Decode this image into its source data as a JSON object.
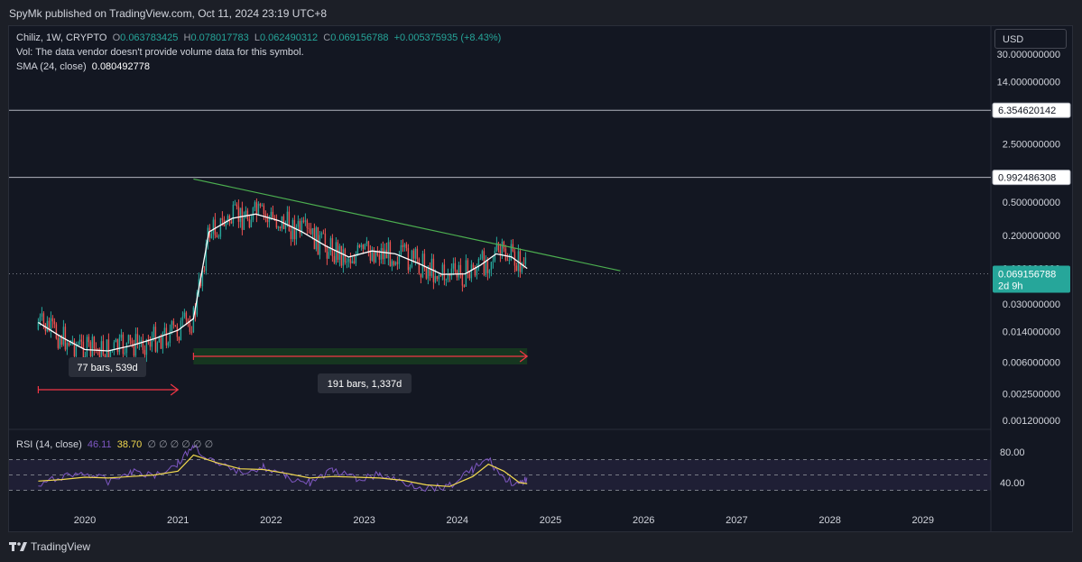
{
  "header": {
    "published": "SpyMk published on TradingView.com, Oct 11, 2024 23:19 UTC+8"
  },
  "legend": {
    "symbol": "Chiliz, 1W, CRYPTO",
    "o_label": "O",
    "o": "0.063783425",
    "h_label": "H",
    "h": "0.078017783",
    "l_label": "L",
    "l": "0.062490312",
    "c_label": "C",
    "c": "0.069156788",
    "change": "+0.005375935 (+8.43%)",
    "vol": "Vol: The data vendor doesn't provide volume data for this symbol.",
    "sma_label": "SMA (24, close)",
    "sma_value": "0.080492778",
    "rsi_label": "RSI (14, close)",
    "rsi_value": "46.11",
    "rsi_ma": "38.70",
    "rsi_extra": "∅ ∅ ∅ ∅ ∅ ∅"
  },
  "currency": "USD",
  "footer": {
    "brand": "TradingView"
  },
  "colors": {
    "up": "#26a69a",
    "down": "#ef5350",
    "trendline": "#4caf50",
    "sma": "#ffffff",
    "rsi": "#7e57c2",
    "rsi_ma": "#f2d94e",
    "price_badge": "#26a69a"
  },
  "chart_data": [
    {
      "type": "line",
      "title": "Chiliz, 1W, CRYPTO",
      "y_scale": "log",
      "y_axis_labels": [
        "30.000000000",
        "14.000000000",
        "2.500000000",
        "0.500000000",
        "0.200000000",
        "0.080000000",
        "0.030000000",
        "0.014000000",
        "0.006000000",
        "0.002500000",
        "0.001200000"
      ],
      "x_axis_labels": [
        "2020",
        "2021",
        "2022",
        "2023",
        "2024",
        "2025",
        "2026",
        "2027",
        "2028",
        "2029"
      ],
      "price_lines": [
        {
          "label": "6.354620142",
          "value": 6.354620142
        },
        {
          "label": "0.992486308",
          "value": 0.992486308
        }
      ],
      "last_price": {
        "label": "0.069156788",
        "countdown": "2d 9h"
      },
      "series": [
        {
          "name": "SMA (24, close)",
          "x": [
            "2019-07",
            "2019-10",
            "2020-01",
            "2020-04",
            "2020-07",
            "2020-10",
            "2021-01",
            "2021-03",
            "2021-05",
            "2021-08",
            "2021-11",
            "2022-02",
            "2022-05",
            "2022-08",
            "2022-11",
            "2023-02",
            "2023-05",
            "2023-08",
            "2023-11",
            "2024-02",
            "2024-04",
            "2024-06",
            "2024-08",
            "2024-10"
          ],
          "y": [
            0.018,
            0.012,
            0.0085,
            0.0082,
            0.0095,
            0.0115,
            0.0145,
            0.02,
            0.22,
            0.32,
            0.36,
            0.3,
            0.22,
            0.15,
            0.11,
            0.13,
            0.12,
            0.092,
            0.068,
            0.069,
            0.088,
            0.12,
            0.11,
            0.08
          ]
        }
      ],
      "trendline": {
        "from": {
          "x": "2021-03",
          "y": 0.95
        },
        "to": {
          "x": "2025-10",
          "y": 0.075
        }
      },
      "annotations": [
        {
          "text": "77 bars, 539d",
          "from": "2019-07",
          "to": "2021-01"
        },
        {
          "text": "191 bars, 1,337d",
          "from": "2021-03",
          "to": "2024-10"
        }
      ]
    },
    {
      "type": "line",
      "title": "RSI (14, close)",
      "y_axis_labels": [
        "80.00",
        "40.00"
      ],
      "ylim": [
        25,
        90
      ],
      "bands": [
        70,
        50,
        30
      ],
      "series": [
        {
          "name": "RSI",
          "x": [
            "2019-07",
            "2019-10",
            "2020-01",
            "2020-04",
            "2020-07",
            "2020-10",
            "2021-01",
            "2021-03",
            "2021-06",
            "2021-09",
            "2021-12",
            "2022-03",
            "2022-06",
            "2022-09",
            "2022-12",
            "2023-03",
            "2023-06",
            "2023-09",
            "2023-12",
            "2024-03",
            "2024-05",
            "2024-07",
            "2024-09",
            "2024-10"
          ],
          "y": [
            35,
            48,
            52,
            42,
            55,
            50,
            65,
            88,
            62,
            55,
            60,
            47,
            40,
            56,
            44,
            50,
            40,
            33,
            36,
            58,
            70,
            45,
            36,
            46.11
          ]
        },
        {
          "name": "RSI-based MA",
          "x": [
            "2019-07",
            "2019-10",
            "2020-01",
            "2020-04",
            "2020-07",
            "2020-10",
            "2021-01",
            "2021-03",
            "2021-06",
            "2021-09",
            "2021-12",
            "2022-03",
            "2022-06",
            "2022-09",
            "2022-12",
            "2023-03",
            "2023-06",
            "2023-09",
            "2023-12",
            "2024-03",
            "2024-05",
            "2024-07",
            "2024-09",
            "2024-10"
          ],
          "y": [
            42,
            44,
            47,
            46,
            48,
            50,
            55,
            76,
            66,
            58,
            57,
            52,
            46,
            48,
            47,
            46,
            43,
            37,
            35,
            48,
            64,
            55,
            40,
            38.7
          ]
        }
      ]
    }
  ]
}
